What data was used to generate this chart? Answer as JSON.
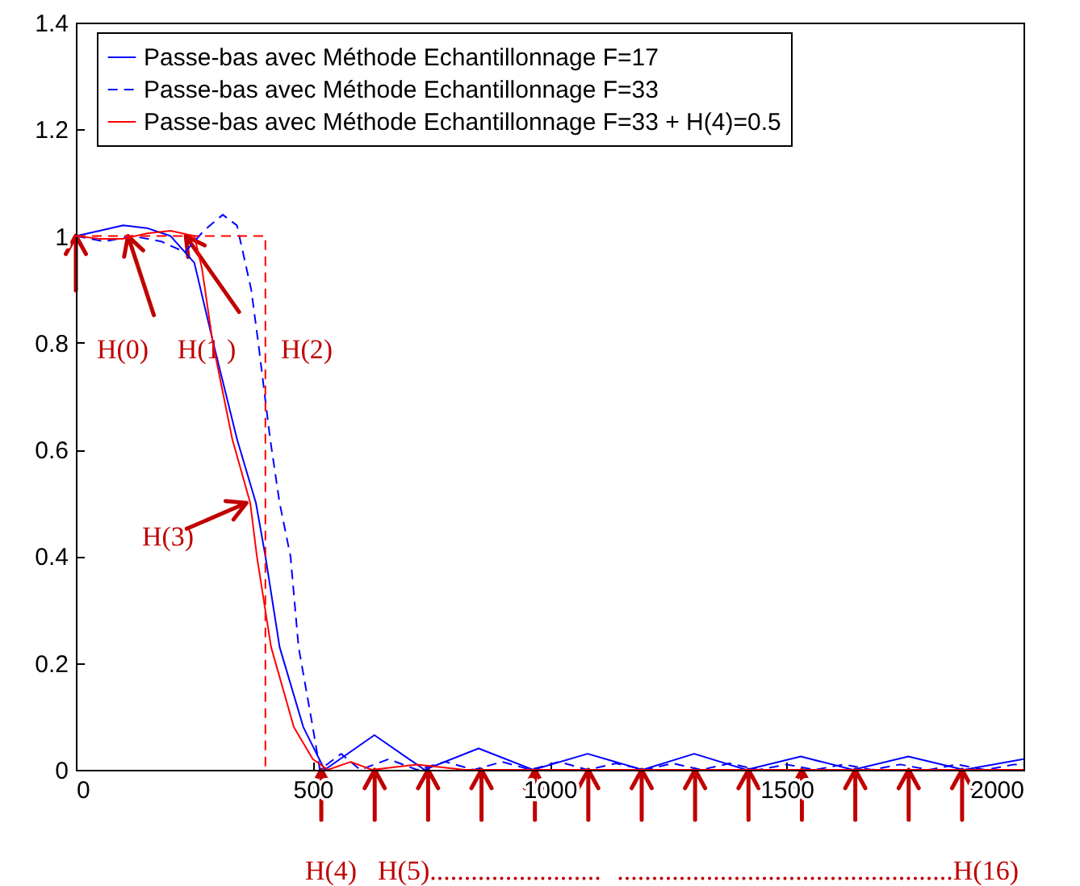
{
  "chart_data": {
    "type": "line",
    "xlim": [
      0,
      2000
    ],
    "xticks": [
      0,
      500,
      1000,
      1500,
      2000
    ],
    "ylim": [
      0,
      1.4
    ],
    "yticks": [
      0,
      0.2,
      0.4,
      0.6,
      0.8,
      1,
      1.2,
      1.4
    ],
    "grid": false,
    "legend": "top",
    "series": [
      {
        "name": "Passe-bas avec Méthode Echantillonnage F=17",
        "color": "#0000ff",
        "line_style": "solid",
        "x": [
          0,
          50,
          100,
          150,
          200,
          250,
          290,
          340,
          380,
          400,
          430,
          480,
          525,
          630,
          736,
          850,
          965,
          1080,
          1196,
          1305,
          1415,
          1530,
          1640,
          1757,
          1874,
          2000
        ],
        "values": [
          1.0,
          1.01,
          1.02,
          1.015,
          1.0,
          0.95,
          0.8,
          0.62,
          0.5,
          0.4,
          0.23,
          0.08,
          0,
          0.065,
          0,
          0.04,
          0,
          0.03,
          0,
          0.03,
          0,
          0.025,
          0,
          0.025,
          0,
          0.02
        ]
      },
      {
        "name": "Passe-bas avec Méthode Echantillonnage F=33",
        "color": "#0000ff",
        "line_style": "dashed",
        "x": [
          0,
          60,
          120,
          180,
          230,
          270,
          310,
          340,
          370,
          385,
          410,
          430,
          453,
          470,
          500,
          515,
          560,
          600,
          660,
          720,
          780,
          840,
          900,
          960,
          1020,
          1080,
          1140,
          1200,
          1260,
          1320,
          1380,
          1440,
          1500,
          1560,
          1620,
          1680,
          1740,
          1800,
          1860,
          1920,
          1980,
          2000
        ],
        "values": [
          1.0,
          0.99,
          1.0,
          0.99,
          0.97,
          1.01,
          1.04,
          1.02,
          0.9,
          0.8,
          0.62,
          0.5,
          0.4,
          0.23,
          0.08,
          0,
          0.03,
          0,
          0.02,
          0,
          0.015,
          0,
          0.015,
          0,
          0.015,
          0,
          0.012,
          0,
          0.012,
          0,
          0.012,
          0,
          0.01,
          0,
          0.01,
          0,
          0.01,
          0,
          0.01,
          0,
          0.01,
          0.01
        ]
      },
      {
        "name": "Passe-bas avec Méthode Echantillonnage F=33 + H(4)=0.5",
        "color": "#ff0000",
        "line_style": "solid",
        "x": [
          0,
          50,
          100,
          150,
          200,
          250,
          266,
          289,
          330,
          368,
          382,
          412,
          460,
          500,
          532,
          580,
          625,
          720,
          820,
          2000
        ],
        "values": [
          1.0,
          0.995,
          0.995,
          1.005,
          1.01,
          1.0,
          0.94,
          0.8,
          0.62,
          0.5,
          0.4,
          0.23,
          0.08,
          0.02,
          0,
          0.015,
          0,
          0.01,
          0,
          0
        ]
      },
      {
        "color": "#ff0000",
        "line_style": "dashed",
        "x": [
          0,
          400,
          400
        ],
        "values": [
          1,
          1,
          0
        ]
      }
    ],
    "annotations": [
      {
        "text": "H(0)",
        "x": 110,
        "y": 1
      },
      {
        "text": "H(1 )",
        "x": 232,
        "y": 1
      },
      "H(2)",
      {
        "text": "H(3)",
        "x": 360,
        "y": 0.5
      },
      "H(4)",
      "H(5).........................",
      ".................................................H(16)"
    ]
  }
}
